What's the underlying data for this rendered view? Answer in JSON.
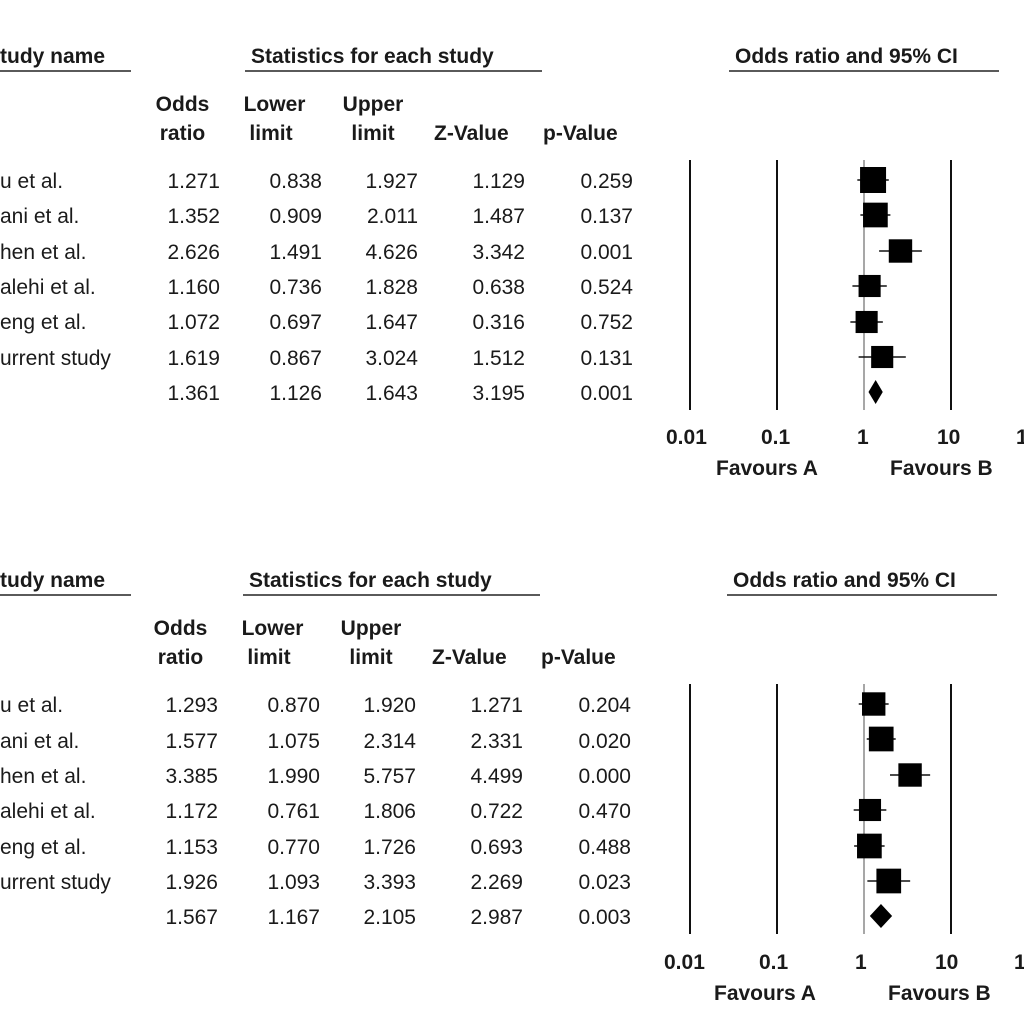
{
  "panels": [
    {
      "headers": {
        "study": "tudy name",
        "statistics": "Statistics for each study",
        "plot": "Odds ratio and 95% CI"
      },
      "columns": {
        "or": [
          "Odds",
          "ratio"
        ],
        "lower": [
          "Lower",
          "limit"
        ],
        "upper": [
          "Upper",
          "limit"
        ],
        "z": "Z-Value",
        "p": "p-Value"
      },
      "rows": [
        {
          "study": "u et al.",
          "or": "1.271",
          "lower": "0.838",
          "upper": "1.927",
          "z": "1.129",
          "p": "0.259"
        },
        {
          "study": "ani et al.",
          "or": "1.352",
          "lower": "0.909",
          "upper": "2.011",
          "z": "1.487",
          "p": "0.137"
        },
        {
          "study": "hen et al.",
          "or": "2.626",
          "lower": "1.491",
          "upper": "4.626",
          "z": "3.342",
          "p": "0.001"
        },
        {
          "study": "alehi et al.",
          "or": "1.160",
          "lower": "0.736",
          "upper": "1.828",
          "z": "0.638",
          "p": "0.524"
        },
        {
          "study": "eng et al.",
          "or": "1.072",
          "lower": "0.697",
          "upper": "1.647",
          "z": "0.316",
          "p": "0.752"
        },
        {
          "study": "urrent study",
          "or": "1.619",
          "lower": "0.867",
          "upper": "3.024",
          "z": "1.512",
          "p": "0.131"
        },
        {
          "study": "",
          "or": "1.361",
          "lower": "1.126",
          "upper": "1.643",
          "z": "3.195",
          "p": "0.001"
        }
      ],
      "axis_ticks": [
        "0.01",
        "0.1",
        "1",
        "10",
        "1"
      ],
      "favours": {
        "a": "Favours A",
        "b": "Favours B"
      }
    },
    {
      "headers": {
        "study": "tudy name",
        "statistics": "Statistics for each study",
        "plot": "Odds ratio and 95% CI"
      },
      "columns": {
        "or": [
          "Odds",
          "ratio"
        ],
        "lower": [
          "Lower",
          "limit"
        ],
        "upper": [
          "Upper",
          "limit"
        ],
        "z": "Z-Value",
        "p": "p-Value"
      },
      "rows": [
        {
          "study": "u et al.",
          "or": "1.293",
          "lower": "0.870",
          "upper": "1.920",
          "z": "1.271",
          "p": "0.204"
        },
        {
          "study": "ani et al.",
          "or": "1.577",
          "lower": "1.075",
          "upper": "2.314",
          "z": "2.331",
          "p": "0.020"
        },
        {
          "study": "hen et al.",
          "or": "3.385",
          "lower": "1.990",
          "upper": "5.757",
          "z": "4.499",
          "p": "0.000"
        },
        {
          "study": "alehi et al.",
          "or": "1.172",
          "lower": "0.761",
          "upper": "1.806",
          "z": "0.722",
          "p": "0.470"
        },
        {
          "study": "eng et al.",
          "or": "1.153",
          "lower": "0.770",
          "upper": "1.726",
          "z": "0.693",
          "p": "0.488"
        },
        {
          "study": "urrent study",
          "or": "1.926",
          "lower": "1.093",
          "upper": "3.393",
          "z": "2.269",
          "p": "0.023"
        },
        {
          "study": "",
          "or": "1.567",
          "lower": "1.167",
          "upper": "2.105",
          "z": "2.987",
          "p": "0.003"
        }
      ],
      "axis_ticks": [
        "0.01",
        "0.1",
        "1",
        "10",
        "1"
      ],
      "favours": {
        "a": "Favours A",
        "b": "Favours B"
      }
    }
  ],
  "chart_data": [
    {
      "type": "forest",
      "title": "Odds ratio and 95% CI",
      "scale": "log",
      "xlim": [
        0.01,
        100
      ],
      "xticks": [
        0.01,
        0.1,
        1,
        10
      ],
      "gridlines": [
        0.01,
        0.1,
        1,
        10
      ],
      "favours": [
        "Favours A",
        "Favours B"
      ],
      "studies": [
        {
          "or": 1.271,
          "lower": 0.838,
          "upper": 1.927,
          "weight": 1.0
        },
        {
          "or": 1.352,
          "lower": 0.909,
          "upper": 2.011,
          "weight": 0.95
        },
        {
          "or": 2.626,
          "lower": 1.491,
          "upper": 4.626,
          "weight": 0.9
        },
        {
          "or": 1.16,
          "lower": 0.736,
          "upper": 1.828,
          "weight": 0.85
        },
        {
          "or": 1.072,
          "lower": 0.697,
          "upper": 1.647,
          "weight": 0.85
        },
        {
          "or": 1.619,
          "lower": 0.867,
          "upper": 3.024,
          "weight": 0.85
        }
      ],
      "summary": {
        "or": 1.361,
        "lower": 1.126,
        "upper": 1.643
      }
    },
    {
      "type": "forest",
      "title": "Odds ratio and 95% CI",
      "scale": "log",
      "xlim": [
        0.01,
        100
      ],
      "xticks": [
        0.01,
        0.1,
        1,
        10
      ],
      "gridlines": [
        0.01,
        0.1,
        1,
        10
      ],
      "favours": [
        "Favours A",
        "Favours B"
      ],
      "studies": [
        {
          "or": 1.293,
          "lower": 0.87,
          "upper": 1.92,
          "weight": 0.9
        },
        {
          "or": 1.577,
          "lower": 1.075,
          "upper": 2.314,
          "weight": 0.95
        },
        {
          "or": 3.385,
          "lower": 1.99,
          "upper": 5.757,
          "weight": 0.9
        },
        {
          "or": 1.172,
          "lower": 0.761,
          "upper": 1.806,
          "weight": 0.85
        },
        {
          "or": 1.153,
          "lower": 0.77,
          "upper": 1.726,
          "weight": 0.95
        },
        {
          "or": 1.926,
          "lower": 1.093,
          "upper": 3.393,
          "weight": 0.95
        }
      ],
      "summary": {
        "or": 1.567,
        "lower": 1.167,
        "upper": 2.105
      }
    }
  ]
}
